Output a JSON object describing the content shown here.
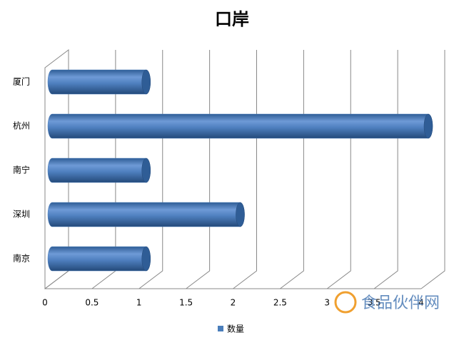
{
  "chart_data": {
    "type": "bar",
    "orientation": "horizontal",
    "title": "口岸",
    "categories": [
      "厦门",
      "杭州",
      "南宁",
      "深圳",
      "南京"
    ],
    "series": [
      {
        "name": "数量",
        "color": "#4a7ebb",
        "values": [
          1,
          4,
          1,
          2,
          1
        ]
      }
    ],
    "xlim": [
      0,
      4
    ],
    "xticks": [
      0,
      0.5,
      1,
      1.5,
      2,
      2.5,
      3,
      3.5,
      4
    ],
    "grid": true,
    "legend": "bottom",
    "watermark": "食品伙伴网"
  }
}
